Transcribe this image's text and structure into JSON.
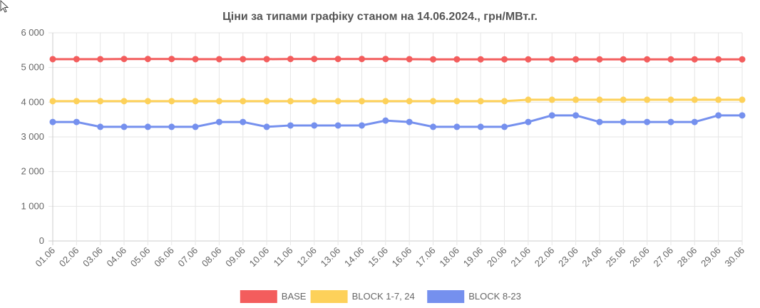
{
  "chart_data": {
    "type": "line",
    "title": "Ціни за типами графіку станом на 14.06.2024., грн/МВт.г.",
    "categories": [
      "01.06",
      "02.06",
      "03.06",
      "04.06",
      "05.06",
      "06.06",
      "07.06",
      "08.06",
      "09.06",
      "10.06",
      "11.06",
      "12.06",
      "13.06",
      "14.06",
      "15.06",
      "16.06",
      "17.06",
      "18.06",
      "19.06",
      "20.06",
      "21.06",
      "22.06",
      "23.06",
      "24.06",
      "25.06",
      "26.06",
      "27.06",
      "28.06",
      "29.06",
      "30.06"
    ],
    "y_ticks": [
      "0",
      "1 000",
      "2 000",
      "3 000",
      "4 000",
      "5 000",
      "6 000"
    ],
    "ylim": [
      0,
      6000
    ],
    "grid": true,
    "legend_position": "bottom",
    "series": [
      {
        "name": "BASE",
        "color": "#f35d5d",
        "values": [
          5240,
          5240,
          5240,
          5245,
          5245,
          5245,
          5240,
          5240,
          5240,
          5240,
          5245,
          5245,
          5245,
          5245,
          5245,
          5240,
          5235,
          5235,
          5235,
          5235,
          5235,
          5235,
          5235,
          5235,
          5235,
          5235,
          5235,
          5235,
          5235,
          5235
        ]
      },
      {
        "name": "BLOCK 1-7, 24",
        "color": "#fdd15a",
        "values": [
          4030,
          4030,
          4030,
          4030,
          4030,
          4030,
          4030,
          4030,
          4030,
          4030,
          4030,
          4030,
          4030,
          4030,
          4030,
          4030,
          4030,
          4030,
          4030,
          4030,
          4070,
          4070,
          4070,
          4070,
          4070,
          4070,
          4070,
          4070,
          4070,
          4070
        ]
      },
      {
        "name": "BLOCK 8-23",
        "color": "#7590ee",
        "values": [
          3430,
          3430,
          3290,
          3290,
          3290,
          3290,
          3290,
          3430,
          3430,
          3290,
          3330,
          3330,
          3330,
          3330,
          3470,
          3430,
          3290,
          3290,
          3290,
          3290,
          3430,
          3620,
          3620,
          3430,
          3430,
          3430,
          3430,
          3430,
          3620,
          3620
        ]
      }
    ]
  },
  "cursor_icon": "mouse-pointer-icon"
}
